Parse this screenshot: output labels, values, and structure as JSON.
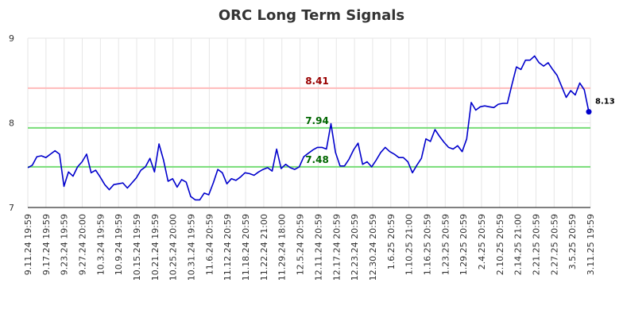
{
  "chart_data": {
    "type": "line",
    "title": "ORC Long Term Signals",
    "xlabel": "",
    "ylabel": "",
    "ylim": [
      7,
      9
    ],
    "yticks": [
      "7",
      "8",
      "9"
    ],
    "xtick_labels": [
      "9.11.24 19:59",
      "9.17.24 19:59",
      "9.23.24 19:59",
      "9.27.24 20:00",
      "10.3.24 19:59",
      "10.9.24 19:59",
      "10.15.24 19:59",
      "10.21.24 19:59",
      "10.25.24 20:00",
      "10.31.24 19:59",
      "11.6.24 20:59",
      "11.12.24 20:59",
      "11.18.24 20:59",
      "11.22.24 21:00",
      "11.29.24 18:00",
      "12.5.24 20:59",
      "12.11.24 20:59",
      "12.17.24 20:59",
      "12.23.24 20:59",
      "12.30.24 20:59",
      "1.6.25 20:59",
      "1.10.25 21:00",
      "1.16.25 20:59",
      "1.23.25 20:59",
      "1.29.25 20:59",
      "2.4.25 20:59",
      "2.10.25 20:59",
      "2.14.25 21:00",
      "2.21.25 20:59",
      "2.27.25 20:59",
      "3.5.25 20:59",
      "3.11.25 19:59"
    ],
    "grid": true,
    "series": [
      {
        "color": "#0000cc",
        "values": [
          7.47,
          7.5,
          7.6,
          7.61,
          7.59,
          7.63,
          7.67,
          7.63,
          7.25,
          7.42,
          7.37,
          7.48,
          7.54,
          7.63,
          7.41,
          7.44,
          7.36,
          7.27,
          7.21,
          7.27,
          7.28,
          7.29,
          7.23,
          7.29,
          7.35,
          7.44,
          7.48,
          7.58,
          7.42,
          7.75,
          7.56,
          7.31,
          7.34,
          7.24,
          7.33,
          7.3,
          7.13,
          7.09,
          7.09,
          7.17,
          7.15,
          7.29,
          7.45,
          7.41,
          7.28,
          7.34,
          7.32,
          7.36,
          7.41,
          7.4,
          7.38,
          7.42,
          7.45,
          7.47,
          7.43,
          7.69,
          7.46,
          7.51,
          7.47,
          7.45,
          7.48,
          7.6,
          7.64,
          7.68,
          7.71,
          7.71,
          7.69,
          7.99,
          7.65,
          7.49,
          7.49,
          7.57,
          7.68,
          7.76,
          7.51,
          7.54,
          7.48,
          7.56,
          7.65,
          7.71,
          7.66,
          7.63,
          7.59,
          7.59,
          7.54,
          7.41,
          7.5,
          7.58,
          7.81,
          7.78,
          7.92,
          7.84,
          7.77,
          7.71,
          7.69,
          7.73,
          7.66,
          7.81,
          8.24,
          8.15,
          8.19,
          8.2,
          8.19,
          8.18,
          8.22,
          8.23,
          8.23,
          8.45,
          8.66,
          8.63,
          8.74,
          8.74,
          8.79,
          8.71,
          8.67,
          8.71,
          8.63,
          8.56,
          8.43,
          8.3,
          8.38,
          8.33,
          8.47,
          8.39,
          8.13
        ]
      }
    ],
    "reference_lines": [
      {
        "value": 8.41,
        "label": "8.41",
        "line_color": "#ffbbbb",
        "label_color": "#990000"
      },
      {
        "value": 7.94,
        "label": "7.94",
        "line_color": "#77dd77",
        "label_color": "#006600"
      },
      {
        "value": 7.48,
        "label": "7.48",
        "line_color": "#77dd77",
        "label_color": "#006600"
      }
    ],
    "last_value_label": "8.13"
  }
}
